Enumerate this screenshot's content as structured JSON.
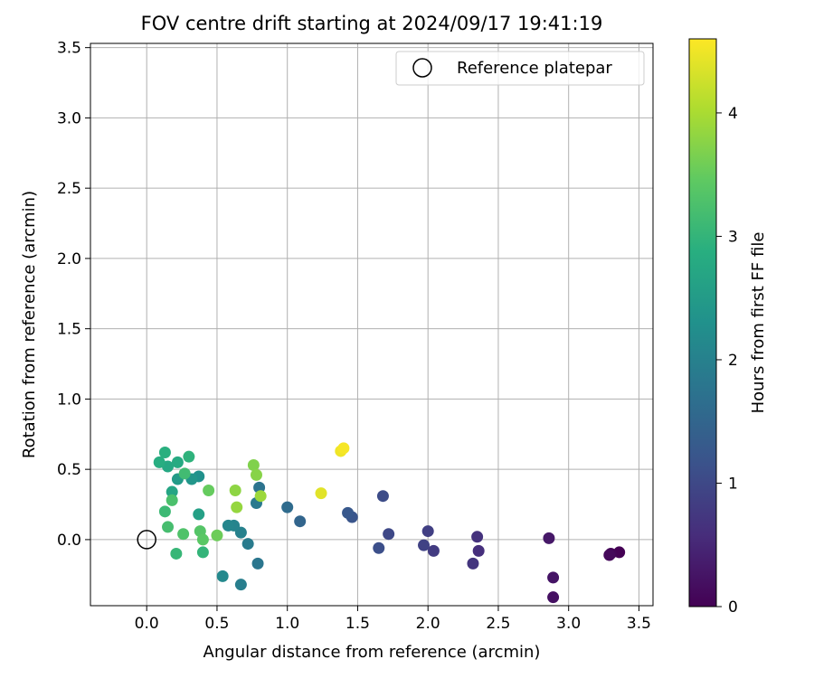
{
  "chart_data": {
    "type": "scatter",
    "title": "FOV centre drift starting at 2024/09/17 19:41:19",
    "xlabel": "Angular distance from reference (arcmin)",
    "ylabel": "Rotation from reference (arcmin)",
    "xlim": [
      -0.4,
      3.6
    ],
    "ylim": [
      -0.47,
      3.53
    ],
    "xticks": [
      0.0,
      0.5,
      1.0,
      1.5,
      2.0,
      2.5,
      3.0,
      3.5
    ],
    "yticks": [
      0.0,
      0.5,
      1.0,
      1.5,
      2.0,
      2.5,
      3.0,
      3.5
    ],
    "xtick_labels": [
      "0.0",
      "0.5",
      "1.0",
      "1.5",
      "2.0",
      "2.5",
      "3.0",
      "3.5"
    ],
    "ytick_labels": [
      "0.0",
      "0.5",
      "1.0",
      "1.5",
      "2.0",
      "2.5",
      "3.0",
      "3.5"
    ],
    "grid": true,
    "legend": {
      "position": "top-right",
      "label": "Reference platepar"
    },
    "reference_point": {
      "x": 0.0,
      "y": 0.0
    },
    "colorbar": {
      "label": "Hours from first FF file",
      "colormap": "viridis",
      "range": [
        0,
        4.6
      ],
      "ticks": [
        0,
        1,
        2,
        3,
        4
      ],
      "tick_labels": [
        "0",
        "1",
        "2",
        "3",
        "4"
      ]
    },
    "points": [
      {
        "x": 3.36,
        "y": -0.09,
        "c": 0.0
      },
      {
        "x": 3.3,
        "y": -0.1,
        "c": 0.05
      },
      {
        "x": 3.29,
        "y": -0.11,
        "c": 0.1
      },
      {
        "x": 2.89,
        "y": -0.41,
        "c": 0.2
      },
      {
        "x": 2.89,
        "y": -0.27,
        "c": 0.25
      },
      {
        "x": 2.86,
        "y": 0.01,
        "c": 0.3
      },
      {
        "x": 2.36,
        "y": -0.08,
        "c": 0.6
      },
      {
        "x": 2.35,
        "y": 0.02,
        "c": 0.65
      },
      {
        "x": 2.32,
        "y": -0.17,
        "c": 0.7
      },
      {
        "x": 2.04,
        "y": -0.08,
        "c": 0.8
      },
      {
        "x": 2.0,
        "y": 0.06,
        "c": 0.85
      },
      {
        "x": 1.97,
        "y": -0.04,
        "c": 0.9
      },
      {
        "x": 1.72,
        "y": 0.04,
        "c": 1.0
      },
      {
        "x": 1.68,
        "y": 0.31,
        "c": 1.05
      },
      {
        "x": 1.65,
        "y": -0.06,
        "c": 1.1
      },
      {
        "x": 1.46,
        "y": 0.16,
        "c": 1.2
      },
      {
        "x": 1.43,
        "y": 0.19,
        "c": 1.25
      },
      {
        "x": 1.09,
        "y": 0.13,
        "c": 1.5
      },
      {
        "x": 1.0,
        "y": 0.23,
        "c": 1.6
      },
      {
        "x": 0.8,
        "y": 0.37,
        "c": 1.75
      },
      {
        "x": 0.79,
        "y": -0.17,
        "c": 1.8
      },
      {
        "x": 0.78,
        "y": 0.26,
        "c": 1.85
      },
      {
        "x": 0.72,
        "y": -0.03,
        "c": 1.9
      },
      {
        "x": 0.67,
        "y": -0.32,
        "c": 1.95
      },
      {
        "x": 0.67,
        "y": 0.05,
        "c": 2.0
      },
      {
        "x": 0.62,
        "y": 0.1,
        "c": 2.05
      },
      {
        "x": 0.58,
        "y": 0.1,
        "c": 2.1
      },
      {
        "x": 0.54,
        "y": -0.26,
        "c": 2.15
      },
      {
        "x": 0.37,
        "y": 0.45,
        "c": 2.3
      },
      {
        "x": 0.32,
        "y": 0.43,
        "c": 2.4
      },
      {
        "x": 0.22,
        "y": 0.43,
        "c": 2.5
      },
      {
        "x": 0.37,
        "y": 0.18,
        "c": 2.6
      },
      {
        "x": 0.18,
        "y": 0.34,
        "c": 2.7
      },
      {
        "x": 0.15,
        "y": 0.52,
        "c": 2.75
      },
      {
        "x": 0.22,
        "y": 0.55,
        "c": 2.8
      },
      {
        "x": 0.09,
        "y": 0.55,
        "c": 2.85
      },
      {
        "x": 0.13,
        "y": 0.62,
        "c": 2.9
      },
      {
        "x": 0.3,
        "y": 0.59,
        "c": 2.95
      },
      {
        "x": 0.4,
        "y": -0.09,
        "c": 3.0
      },
      {
        "x": 0.21,
        "y": -0.1,
        "c": 3.05
      },
      {
        "x": 0.13,
        "y": 0.2,
        "c": 3.1
      },
      {
        "x": 0.27,
        "y": 0.47,
        "c": 3.15
      },
      {
        "x": 0.15,
        "y": 0.09,
        "c": 3.2
      },
      {
        "x": 0.18,
        "y": 0.28,
        "c": 3.25
      },
      {
        "x": 0.26,
        "y": 0.04,
        "c": 3.3
      },
      {
        "x": 0.38,
        "y": 0.06,
        "c": 3.35
      },
      {
        "x": 0.4,
        "y": 0.0,
        "c": 3.4
      },
      {
        "x": 0.44,
        "y": 0.35,
        "c": 3.5
      },
      {
        "x": 0.5,
        "y": 0.03,
        "c": 3.55
      },
      {
        "x": 0.76,
        "y": 0.53,
        "c": 3.7
      },
      {
        "x": 0.78,
        "y": 0.46,
        "c": 3.75
      },
      {
        "x": 0.63,
        "y": 0.35,
        "c": 3.8
      },
      {
        "x": 0.64,
        "y": 0.23,
        "c": 3.85
      },
      {
        "x": 0.81,
        "y": 0.31,
        "c": 3.9
      },
      {
        "x": 1.24,
        "y": 0.33,
        "c": 4.4
      },
      {
        "x": 1.38,
        "y": 0.63,
        "c": 4.5
      },
      {
        "x": 1.4,
        "y": 0.65,
        "c": 4.55
      }
    ]
  }
}
